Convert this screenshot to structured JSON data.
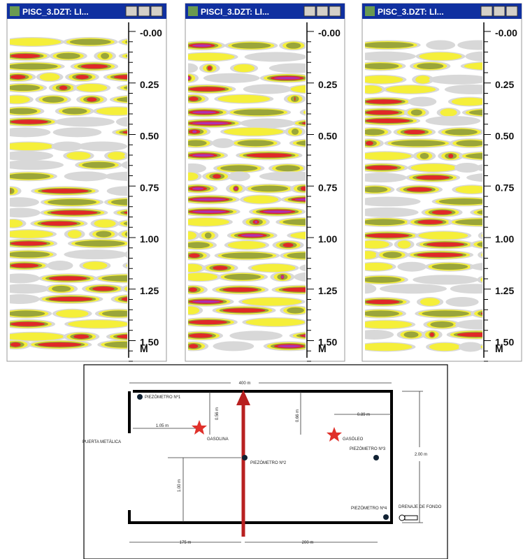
{
  "panels": [
    {
      "title": "PISC_3.DZT: LI...",
      "depth_labels": [
        "-0.00",
        "0.25",
        "0.50",
        "0.75",
        "1.00",
        "1.25",
        "1.50"
      ],
      "unit": "M"
    },
    {
      "title": "PISCI_3.DZT: LI...",
      "depth_labels": [
        "-0.00",
        "0.25",
        "0.50",
        "0.75",
        "1.00",
        "1.25",
        "1.50"
      ],
      "unit": "M"
    },
    {
      "title": "PISC_3.DZT: LI...",
      "depth_labels": [
        "-0.00",
        "0.25",
        "0.50",
        "0.75",
        "1.00",
        "1.25",
        "1.50"
      ],
      "unit": "M"
    }
  ],
  "site_plan": {
    "top_dimension": "400 m",
    "piezometer_1": "PIEZÓMETRO Nº1",
    "dim_056": "0.56 m",
    "dim_105": "1.05 m",
    "gasoline": "GASOLINA",
    "gate": "PUERTA METÁLICA",
    "dim_066": "0.66 m",
    "dim_089": "0.89 m",
    "diesel": "GASÓLEO",
    "piezometer_3": "PIEZÓMETRO Nº3",
    "piezometer_2": "PIEZÓMETRO Nº2",
    "right_dimension": "2.00 m",
    "dim_100": "1.00 m",
    "piezometer_4": "PIEZÓMETRO Nº4",
    "drain": "DRENAJE DE FONDO",
    "bottom_left_dimension": "175 m",
    "bottom_right_dimension": "200 m"
  }
}
